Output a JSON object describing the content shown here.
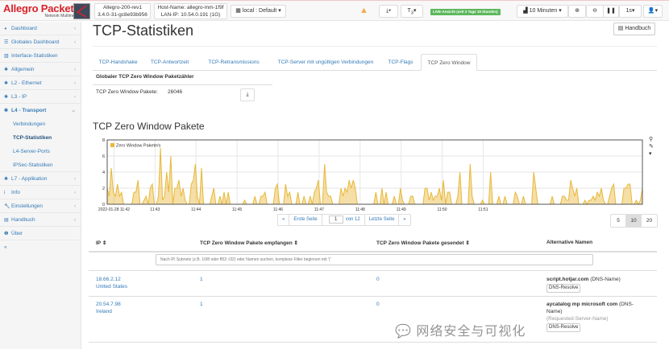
{
  "header": {
    "brand": "Allegro Packets",
    "brand_sub": "Network Multimeter",
    "device": "Allegro-200-rev1",
    "version": "3.4.0-31-gc8e93b956",
    "hostname": "Host-Name: allegro-mm-1f9f",
    "lan_ip": "LAN-IP: 10.54.0.191 (1G)",
    "profile": "local : Default",
    "filter_count": "3",
    "live": "LIVE-Ansicht (seit 2 Tage 19 Stunden)",
    "time_range": "10 Minuten",
    "refresh": "1s",
    "warning_color": "#f0ad4e",
    "live_color": "#5cb85c"
  },
  "sidebar": {
    "items": [
      {
        "label": "Dashboard",
        "icon": "dashboard-icon"
      },
      {
        "label": "Globales Dashboard",
        "icon": "list-icon"
      },
      {
        "label": "Interface-Statistiken",
        "icon": "bar-chart-icon"
      },
      {
        "label": "Allgemein",
        "icon": "gear-icon"
      },
      {
        "label": "L2 - Ethernet",
        "icon": "gear-icon"
      },
      {
        "label": "L3 - IP",
        "icon": "gear-icon"
      },
      {
        "label": "L4 - Transport",
        "icon": "gear-icon"
      },
      {
        "label": "L7 - Applikation",
        "icon": "gear-icon"
      },
      {
        "label": "Info",
        "icon": "info-icon"
      },
      {
        "label": "Einstellungen",
        "icon": "wrench-icon"
      },
      {
        "label": "Handbuch",
        "icon": "book-icon"
      },
      {
        "label": "Über",
        "icon": "info-circle-icon"
      }
    ],
    "sub": [
      "Verbindungen",
      "TCP-Statistiken",
      "L4-Server-Ports",
      "IPSec-Statistiken"
    ],
    "collapse": "«"
  },
  "page": {
    "title": "TCP-Statistiken",
    "manual": "Handbuch"
  },
  "tabs": [
    "TCP-Handshake",
    "TCP-Antwortzeit",
    "TCP-Retransmissions",
    "TCP-Server mit ungültigen Verbindungen",
    "TCP-Flags",
    "TCP Zero Window"
  ],
  "global": {
    "title": "Globaler TCP Zero Window Paketzähler",
    "label": "TCP Zero Window Pakete:",
    "value": "26046"
  },
  "chart_title": "TCP Zero Window Pakete",
  "chart_data": {
    "type": "area",
    "legend": "Zero Window Pakete/s",
    "legend_position": "top-left",
    "color": "#e8b83a",
    "ylim": [
      0,
      8
    ],
    "yticks": [
      0,
      2,
      4,
      6,
      8
    ],
    "grid": true,
    "x_start": "2022-01-28 11:41:50",
    "step_seconds": 3,
    "xticks": [
      "2022-01-28 11:42",
      "11:43",
      "11:44",
      "11:45",
      "11:46",
      "11:47",
      "11:48",
      "11:49",
      "11:50",
      "11:51"
    ],
    "values": [
      2,
      1,
      4.5,
      1.5,
      1,
      2.5,
      1,
      1.5,
      0,
      0,
      0,
      0,
      0,
      1.5,
      1.5,
      3,
      0,
      0,
      0.5,
      1,
      0,
      2,
      2.5,
      0,
      0,
      1,
      7,
      0.5,
      1,
      4,
      1.5,
      6,
      0,
      2,
      2,
      3,
      1,
      2,
      0.5,
      0,
      0,
      2.5,
      3,
      5,
      1,
      0,
      4.5,
      0,
      0,
      0,
      0,
      1,
      2,
      0,
      0,
      1,
      0,
      1.5,
      0,
      1.5,
      0,
      0,
      0,
      0,
      0,
      0,
      0,
      0.5,
      0,
      0,
      0,
      0,
      1,
      0,
      0,
      1,
      1,
      1.5,
      0,
      0,
      0,
      0,
      2,
      2.5,
      0,
      0,
      0,
      2.5,
      1,
      1.5,
      0,
      0,
      0,
      1.5,
      0,
      0,
      1,
      0,
      0,
      1,
      0,
      1.5,
      2,
      3,
      0,
      0,
      5,
      1.5,
      1,
      1,
      0,
      0,
      0,
      0,
      2,
      1,
      2,
      1.5,
      3,
      2,
      3,
      2,
      0,
      0,
      0,
      0,
      0,
      0,
      0,
      0,
      0,
      1.5,
      0,
      0,
      2,
      0,
      1.5,
      0,
      0,
      0,
      1,
      0,
      0,
      2,
      0.5,
      0,
      0,
      0,
      1,
      1,
      0,
      0,
      0,
      0,
      0,
      2,
      2,
      0.5,
      1.5,
      0.5,
      1,
      1,
      2,
      0.5,
      3,
      0,
      1.5,
      1.5,
      0,
      0,
      0,
      1,
      4,
      0,
      0,
      0,
      0,
      5,
      1,
      0,
      0,
      0,
      0,
      0.5,
      0,
      0,
      0,
      4,
      0,
      0,
      0,
      1,
      0,
      0,
      1,
      0,
      0,
      0,
      0,
      1.5,
      1,
      0,
      0,
      1,
      0,
      0,
      0,
      0,
      4,
      2,
      0,
      0,
      0,
      0,
      0,
      0,
      0,
      1,
      0,
      0,
      0,
      0,
      1,
      1,
      0.5,
      0.5,
      3,
      2,
      1,
      2,
      0,
      0,
      0,
      0.5,
      0,
      0.5,
      0.5,
      1,
      0.5,
      1.5,
      1,
      2,
      0.5,
      0,
      0,
      1,
      2,
      2.5,
      0,
      0,
      0,
      0,
      2,
      2,
      2.5,
      2.5,
      0,
      0,
      0.5,
      0,
      0.5,
      2
    ]
  },
  "pager": {
    "prev": "«",
    "first": "Erste Seite",
    "page": "1",
    "of": "von 12",
    "last": "Letzte Seite",
    "next": "»",
    "sizes": [
      "5",
      "10",
      "20"
    ]
  },
  "table": {
    "headers": [
      "IP ⇕",
      "TCP Zero Window Pakete empfangen ⇕",
      "TCP Zero Window Pakete gesendet ⇕",
      "Alternative Namen"
    ],
    "filter_placeholder": "Nach IP, Subnetz (z.B. 10/8 oder ff02::/32) oder Namen suchen, komplexe Filter beginnen mit '('",
    "rows": [
      {
        "ip": "18.66.2.12",
        "country": "United States",
        "recv": "1",
        "sent": "0",
        "name": "script.hotjar.com",
        "type": "(DNS-Name)",
        "name2": "",
        "type2": "",
        "btn": "DNS-Resolve"
      },
      {
        "ip": "20.54.7.98",
        "country": "Ireland",
        "recv": "1",
        "sent": "0",
        "name": "aycatalog mp microsoft com",
        "type": "(DNS-Name)",
        "name2": "",
        "type2": "(Requested-Server-Name)",
        "btn": "DNS-Resolve"
      }
    ]
  },
  "watermark": "网络安全与可视化"
}
